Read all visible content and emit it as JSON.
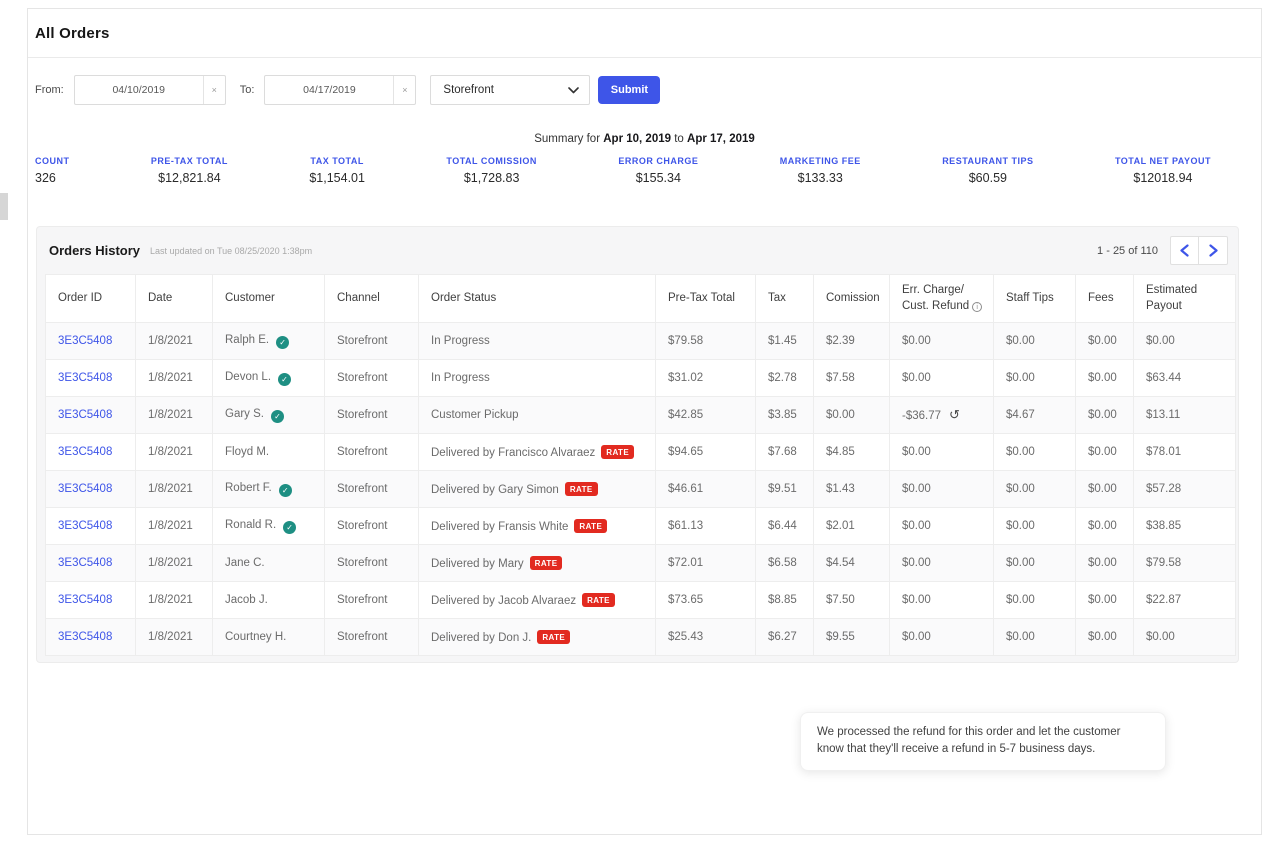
{
  "colors": {
    "accent": "#3E55E8",
    "verified": "#1E8F83",
    "rate": "#E22A20"
  },
  "page": {
    "title": "All Orders"
  },
  "filters": {
    "from_label": "From:",
    "from_value": "04/10/2019",
    "to_label": "To:",
    "to_value": "04/17/2019",
    "clear_icon": "×",
    "channel_value": "Storefront",
    "submit_label": "Submit"
  },
  "summary": {
    "prefix": "Summary for",
    "start_date": "Apr 10, 2019",
    "joiner": "to",
    "end_date": "Apr 17, 2019",
    "stats": [
      {
        "label": "COUNT",
        "value": "326"
      },
      {
        "label": "PRE-TAX TOTAL",
        "value": "$12,821.84"
      },
      {
        "label": "TAX TOTAL",
        "value": "$1,154.01"
      },
      {
        "label": "TOTAL COMISSION",
        "value": "$1,728.83"
      },
      {
        "label": "ERROR CHARGE",
        "value": "$155.34"
      },
      {
        "label": "MARKETING FEE",
        "value": "$133.33"
      },
      {
        "label": "RESTAURANT TIPS",
        "value": "$60.59"
      },
      {
        "label": "TOTAL NET PAYOUT",
        "value": "$12018.94"
      }
    ]
  },
  "orders_history": {
    "title": "Orders History",
    "last_updated": "Last updated on Tue 08/25/2020 1:38pm",
    "pagination": {
      "range_text": "1 - 25 of 110",
      "prev_icon": "chevron-left",
      "next_icon": "chevron-right"
    },
    "table": {
      "rate_badge_label": "RATE",
      "icons": {
        "verified": "✓",
        "refund": "↺",
        "info": "i"
      },
      "columns": [
        {
          "text": "Order ID"
        },
        {
          "text": "Date"
        },
        {
          "text": "Customer"
        },
        {
          "text": "Channel"
        },
        {
          "text": "Order Status"
        },
        {
          "text": "Pre-Tax Total"
        },
        {
          "text": "Tax"
        },
        {
          "text": "Comission"
        },
        {
          "text": "Err. Charge/\nCust. Refund",
          "info": true
        },
        {
          "text": "Staff Tips"
        },
        {
          "text": "Fees"
        },
        {
          "text": "Estimated\nPayout"
        }
      ],
      "rows": [
        {
          "order_id": "3E3C5408",
          "date": "1/8/2021",
          "customer": "Ralph E.",
          "verified": true,
          "channel": "Storefront",
          "status": "In Progress",
          "rate": false,
          "pre_tax": "$79.58",
          "tax": "$1.45",
          "comission": "$2.39",
          "err_charge": "$0.00",
          "refund_icon": false,
          "staff_tips": "$0.00",
          "fees": "$0.00",
          "estimated_payout": "$0.00"
        },
        {
          "order_id": "3E3C5408",
          "date": "1/8/2021",
          "customer": "Devon L.",
          "verified": true,
          "channel": "Storefront",
          "status": "In Progress",
          "rate": false,
          "pre_tax": "$31.02",
          "tax": "$2.78",
          "comission": "$7.58",
          "err_charge": "$0.00",
          "refund_icon": false,
          "staff_tips": "$0.00",
          "fees": "$0.00",
          "estimated_payout": "$63.44"
        },
        {
          "order_id": "3E3C5408",
          "date": "1/8/2021",
          "customer": "Gary S.",
          "verified": true,
          "channel": "Storefront",
          "status": "Customer Pickup",
          "rate": false,
          "pre_tax": "$42.85",
          "tax": "$3.85",
          "comission": "$0.00",
          "err_charge": "-$36.77",
          "refund_icon": true,
          "staff_tips": "$4.67",
          "fees": "$0.00",
          "estimated_payout": "$13.11"
        },
        {
          "order_id": "3E3C5408",
          "date": "1/8/2021",
          "customer": "Floyd M.",
          "verified": false,
          "channel": "Storefront",
          "status": "Delivered by Francisco Alvaraez",
          "rate": true,
          "pre_tax": "$94.65",
          "tax": "$7.68",
          "comission": "$4.85",
          "err_charge": "$0.00",
          "refund_icon": false,
          "staff_tips": "$0.00",
          "fees": "$0.00",
          "estimated_payout": "$78.01"
        },
        {
          "order_id": "3E3C5408",
          "date": "1/8/2021",
          "customer": "Robert F.",
          "verified": true,
          "channel": "Storefront",
          "status": "Delivered by Gary Simon",
          "rate": true,
          "pre_tax": "$46.61",
          "tax": "$9.51",
          "comission": "$1.43",
          "err_charge": "$0.00",
          "refund_icon": false,
          "staff_tips": "$0.00",
          "fees": "$0.00",
          "estimated_payout": "$57.28"
        },
        {
          "order_id": "3E3C5408",
          "date": "1/8/2021",
          "customer": "Ronald R.",
          "verified": true,
          "channel": "Storefront",
          "status": "Delivered by Fransis White",
          "rate": true,
          "pre_tax": "$61.13",
          "tax": "$6.44",
          "comission": "$2.01",
          "err_charge": "$0.00",
          "refund_icon": false,
          "staff_tips": "$0.00",
          "fees": "$0.00",
          "estimated_payout": "$38.85"
        },
        {
          "order_id": "3E3C5408",
          "date": "1/8/2021",
          "customer": "Jane C.",
          "verified": false,
          "channel": "Storefront",
          "status": "Delivered by Mary",
          "rate": true,
          "pre_tax": "$72.01",
          "tax": "$6.58",
          "comission": "$4.54",
          "err_charge": "$0.00",
          "refund_icon": false,
          "staff_tips": "$0.00",
          "fees": "$0.00",
          "estimated_payout": "$79.58"
        },
        {
          "order_id": "3E3C5408",
          "date": "1/8/2021",
          "customer": "Jacob J.",
          "verified": false,
          "channel": "Storefront",
          "status": "Delivered by Jacob Alvaraez",
          "rate": true,
          "pre_tax": "$73.65",
          "tax": "$8.85",
          "comission": "$7.50",
          "err_charge": "$0.00",
          "refund_icon": false,
          "staff_tips": "$0.00",
          "fees": "$0.00",
          "estimated_payout": "$22.87"
        },
        {
          "order_id": "3E3C5408",
          "date": "1/8/2021",
          "customer": "Courtney H.",
          "verified": false,
          "channel": "Storefront",
          "status": "Delivered by Don J.",
          "rate": true,
          "pre_tax": "$25.43",
          "tax": "$6.27",
          "comission": "$9.55",
          "err_charge": "$0.00",
          "refund_icon": false,
          "staff_tips": "$0.00",
          "fees": "$0.00",
          "estimated_payout": "$0.00"
        }
      ]
    }
  },
  "tooltip": {
    "text": "We processed the refund for this order and let the customer know that they'll receive a refund in 5-7 business days."
  }
}
